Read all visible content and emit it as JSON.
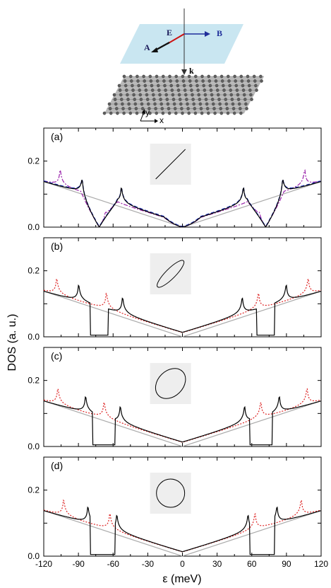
{
  "schematic": {
    "labels": {
      "E": "E",
      "B": "B",
      "A": "A",
      "k": "k",
      "y": "y",
      "x": "x"
    },
    "colors": {
      "plane": "#c9e6f1",
      "E_arrow": "#cc1111",
      "B_arrow": "#1f2d9a",
      "A_arrow": "#111111",
      "k_arrow": "#333333"
    }
  },
  "chart_data": [
    {
      "type": "line",
      "panel": "(a)",
      "xlim": [
        -120,
        120
      ],
      "ylim": [
        0,
        0.3
      ],
      "yticks": [
        "0.0",
        "0.2"
      ],
      "xlabel": "",
      "ylabel": "",
      "inset": "linear",
      "peaks_black": [
        -87,
        -53,
        53,
        87
      ],
      "zeros_black": [
        -72,
        0,
        72
      ],
      "peaks_red": [
        -106,
        -67,
        67,
        106
      ],
      "series": [
        {
          "color": "#000000",
          "style": "solid"
        },
        {
          "color": "#2233bb",
          "style": "dashed"
        },
        {
          "color": "#9922aa",
          "style": "dashdot"
        },
        {
          "color": "#aaaaaa",
          "style": "solid"
        }
      ]
    },
    {
      "type": "line",
      "panel": "(b)",
      "xlim": [
        -120,
        120
      ],
      "ylim": [
        0,
        0.3
      ],
      "yticks": [
        "0.0",
        "0.2"
      ],
      "inset": "thin-ellipse",
      "peaks_black": [
        -90,
        -52,
        52,
        90
      ],
      "gaps_black": [
        [
          -80,
          -64
        ],
        [
          64,
          80
        ]
      ],
      "peaks_red": [
        -109,
        -66,
        66,
        109
      ],
      "series": [
        {
          "color": "#000000",
          "style": "solid"
        },
        {
          "color": "#dd2222",
          "style": "dotted"
        },
        {
          "color": "#aaaaaa",
          "style": "solid"
        }
      ]
    },
    {
      "type": "line",
      "panel": "(c)",
      "xlim": [
        -120,
        120
      ],
      "ylim": [
        0,
        0.3
      ],
      "yticks": [
        "0.0",
        "0.2"
      ],
      "inset": "ellipse",
      "peaks_black": [
        -84,
        -54,
        54,
        84
      ],
      "gaps_black": [
        [
          -78,
          -58
        ],
        [
          58,
          78
        ]
      ],
      "peaks_red": [
        -108,
        -68,
        68,
        108
      ],
      "series": [
        {
          "color": "#000000",
          "style": "solid"
        },
        {
          "color": "#dd2222",
          "style": "dotted"
        },
        {
          "color": "#aaaaaa",
          "style": "solid"
        }
      ]
    },
    {
      "type": "line",
      "panel": "(d)",
      "xlim": [
        -120,
        120
      ],
      "ylim": [
        0,
        0.3
      ],
      "yticks": [
        "0.0",
        "0.2"
      ],
      "xticks": [
        -120,
        -90,
        -60,
        -30,
        0,
        30,
        60,
        90,
        120
      ],
      "inset": "circle",
      "peaks_black": [
        -82,
        -57,
        57,
        82
      ],
      "gaps_black": [
        [
          -80,
          -58
        ],
        [
          58,
          80
        ]
      ],
      "peaks_red": [
        -103,
        -63,
        63,
        103
      ],
      "series": [
        {
          "color": "#000000",
          "style": "solid"
        },
        {
          "color": "#dd2222",
          "style": "dotted"
        },
        {
          "color": "#aaaaaa",
          "style": "solid"
        }
      ]
    }
  ],
  "axes": {
    "ylabel": "DOS (a. u.)",
    "xlabel": "ε (meV)",
    "panel_labels": [
      "(a)",
      "(b)",
      "(c)",
      "(d)"
    ],
    "ytick_labels": [
      "0.0",
      "0.2"
    ],
    "xtick_labels": [
      "-120",
      "-90",
      "-60",
      "-30",
      "0",
      "30",
      "60",
      "90",
      "120"
    ]
  }
}
